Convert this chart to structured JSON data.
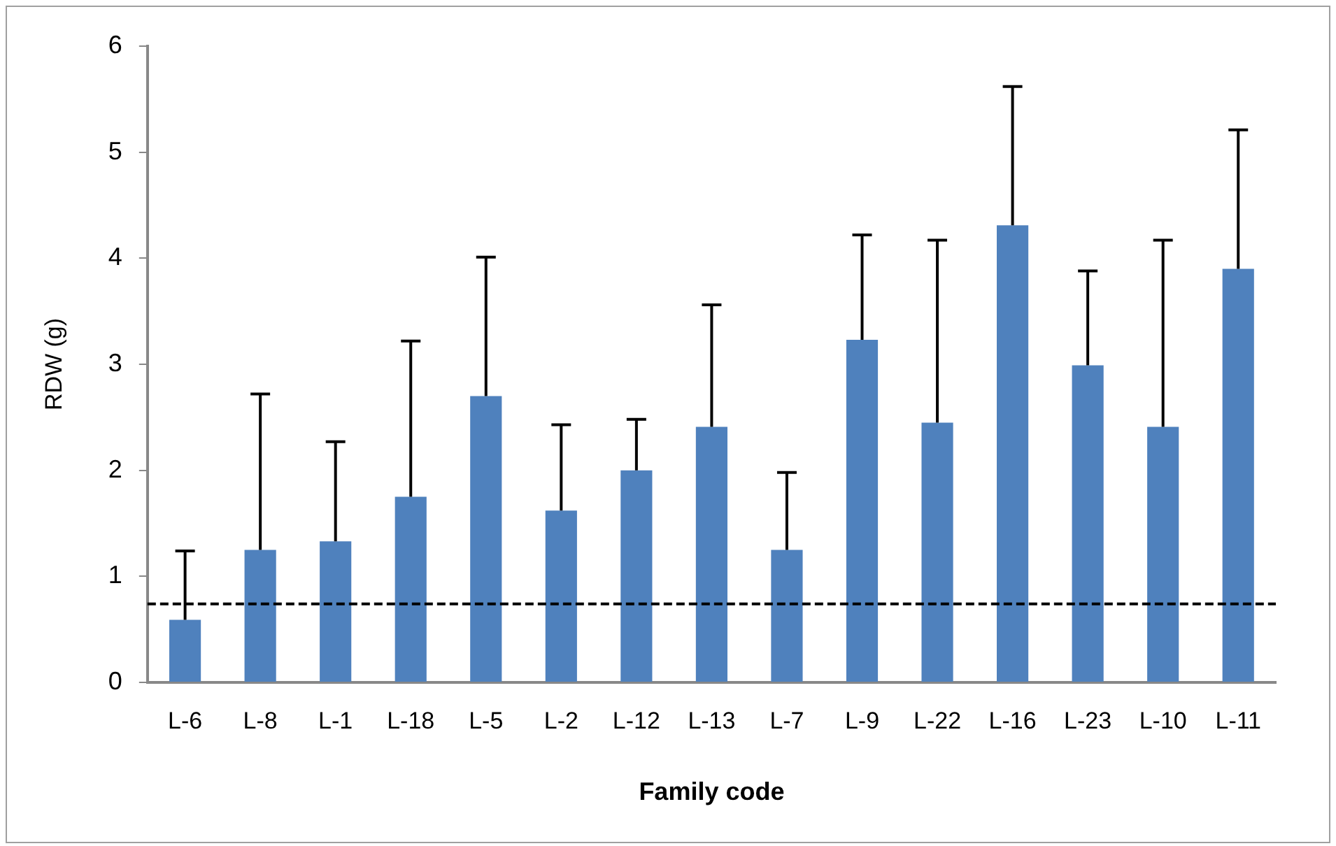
{
  "chart_data": {
    "type": "bar",
    "xlabel": "Family code",
    "ylabel": "RDW (g)",
    "categories": [
      "L-6",
      "L-8",
      "L-1",
      "L-18",
      "L-5",
      "L-2",
      "L-12",
      "L-13",
      "L-7",
      "L-9",
      "L-22",
      "L-16",
      "L-23",
      "L-10",
      "L-11"
    ],
    "values": [
      0.59,
      1.25,
      1.33,
      1.75,
      2.7,
      1.62,
      2.0,
      2.41,
      1.25,
      3.23,
      2.45,
      4.31,
      2.99,
      2.41,
      3.9
    ],
    "errors": [
      [
        0.59,
        1.24
      ],
      [
        1.25,
        2.72
      ],
      [
        1.33,
        2.27
      ],
      [
        1.75,
        3.22
      ],
      [
        2.7,
        4.01
      ],
      [
        1.62,
        2.43
      ],
      [
        2.0,
        2.48
      ],
      [
        2.41,
        3.56
      ],
      [
        1.25,
        1.98
      ],
      [
        3.23,
        4.22
      ],
      [
        2.45,
        4.17
      ],
      [
        4.31,
        5.62
      ],
      [
        2.99,
        3.88
      ],
      [
        2.41,
        4.17
      ],
      [
        3.9,
        5.21
      ]
    ],
    "color": "#4f81bd",
    "ylim": [
      0,
      6
    ],
    "yticks": [
      0,
      1,
      2,
      3,
      4,
      5,
      6
    ],
    "grid": false,
    "legend": false,
    "ref_lines": [
      {
        "axis": "y",
        "value": 0.74,
        "line_style": "dashed",
        "color": "#000000"
      }
    ]
  }
}
